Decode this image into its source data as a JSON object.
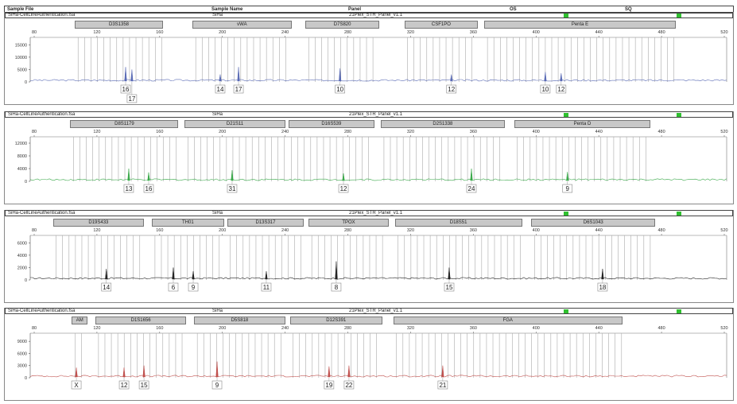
{
  "header": {
    "sample_file": "Sample File",
    "sample_name": "Sample Name",
    "panel": "Panel",
    "os": "OS",
    "sq": "SQ"
  },
  "status_colors": {
    "os": "#2fc02f",
    "sq": "#2fc02f"
  },
  "chart_data": [
    {
      "type": "line",
      "sample_file": "SiHa-CellLineAuthentication.fsa",
      "sample_name": "SiHa",
      "panel": "21Plex_STR_Panel_v1.1",
      "color": "#5a6bb5",
      "xlim": [
        80,
        520
      ],
      "xticks": [
        80,
        120,
        160,
        200,
        240,
        280,
        320,
        360,
        400,
        440,
        480,
        520
      ],
      "ylim": [
        0,
        18000
      ],
      "yticks": [
        0,
        5000,
        10000,
        15000
      ],
      "markers": [
        {
          "name": "D3S1358",
          "range": [
            106,
            162
          ]
        },
        {
          "name": "vWA",
          "range": [
            181,
            244
          ]
        },
        {
          "name": "D7S820",
          "range": [
            253,
            300
          ]
        },
        {
          "name": "CSF1PO",
          "range": [
            316,
            363
          ]
        },
        {
          "name": "Penta E",
          "range": [
            367,
            489
          ]
        }
      ],
      "peaks": [
        {
          "allele": "16",
          "size": 138.3,
          "height": 6000
        },
        {
          "allele": "17",
          "size": 142.3,
          "height": 5000
        },
        {
          "allele": "14",
          "size": 198.6,
          "height": 3000
        },
        {
          "allele": "17",
          "size": 210.3,
          "height": 6000
        },
        {
          "allele": "10",
          "size": 275,
          "height": 5500
        },
        {
          "allele": "12",
          "size": 346,
          "height": 3000
        },
        {
          "allele": "10",
          "size": 405.9,
          "height": 4000
        },
        {
          "allele": "12",
          "size": 416,
          "height": 3500
        }
      ]
    },
    {
      "type": "line",
      "sample_file": "SiHa-CellLineAuthentication.fsa",
      "sample_name": "SiHa",
      "panel": "21Plex_STR_Panel_v1.1",
      "color": "#3aa94a",
      "xlim": [
        80,
        520
      ],
      "xticks": [
        80,
        120,
        160,
        200,
        240,
        280,
        320,
        360,
        400,
        440,
        480,
        520
      ],
      "ylim": [
        0,
        14000
      ],
      "yticks": [
        0,
        4000,
        8000,
        12000
      ],
      "markers": [
        {
          "name": "D8S1179",
          "range": [
            103,
            172
          ]
        },
        {
          "name": "D21S11",
          "range": [
            176,
            240
          ]
        },
        {
          "name": "D16S539",
          "range": [
            242,
            297
          ]
        },
        {
          "name": "D2S1338",
          "range": [
            301,
            380
          ]
        },
        {
          "name": "Penta D",
          "range": [
            386,
            473
          ]
        }
      ],
      "peaks": [
        {
          "allele": "13",
          "size": 140.3,
          "height": 4000
        },
        {
          "allele": "16",
          "size": 153,
          "height": 2800
        },
        {
          "allele": "31",
          "size": 206.2,
          "height": 3500
        },
        {
          "allele": "12",
          "size": 277.2,
          "height": 2500
        },
        {
          "allele": "24",
          "size": 358.8,
          "height": 4000
        },
        {
          "allele": "9",
          "size": 420,
          "height": 3000
        }
      ]
    },
    {
      "type": "line",
      "sample_file": "SiHa-CellLineAuthentication.fsa",
      "sample_name": "SiHa",
      "panel": "21Plex_STR_Panel_v1.1",
      "color": "#222222",
      "xlim": [
        80,
        520
      ],
      "xticks": [
        80,
        120,
        160,
        200,
        240,
        280,
        320,
        360,
        400,
        440,
        480,
        520
      ],
      "ylim": [
        0,
        7200
      ],
      "yticks": [
        0,
        2000,
        4000,
        6000
      ],
      "markers": [
        {
          "name": "D19S433",
          "range": [
            92,
            150
          ]
        },
        {
          "name": "TH01",
          "range": [
            155,
            201
          ]
        },
        {
          "name": "D13S317",
          "range": [
            203,
            252
          ]
        },
        {
          "name": "TPOX",
          "range": [
            255,
            306
          ]
        },
        {
          "name": "D18S51",
          "range": [
            310,
            391
          ]
        },
        {
          "name": "D6S1043",
          "range": [
            397,
            476
          ]
        }
      ],
      "peaks": [
        {
          "allele": "14",
          "size": 126,
          "height": 1800
        },
        {
          "allele": "6",
          "size": 168.7,
          "height": 2000
        },
        {
          "allele": "9",
          "size": 181.4,
          "height": 1400
        },
        {
          "allele": "11",
          "size": 228,
          "height": 1400
        },
        {
          "allele": "8",
          "size": 272.6,
          "height": 3000
        },
        {
          "allele": "15",
          "size": 344.6,
          "height": 2000
        },
        {
          "allele": "18",
          "size": 442.4,
          "height": 1800
        }
      ]
    },
    {
      "type": "line",
      "sample_file": "SiHa-CellLineAuthentication.fsa",
      "sample_name": "SiHa",
      "panel": "21Plex_STR_Panel_v1.1",
      "color": "#c0504d",
      "xlim": [
        80,
        520
      ],
      "xticks": [
        80,
        120,
        160,
        200,
        240,
        280,
        320,
        360,
        400,
        440,
        480,
        520
      ],
      "ylim": [
        0,
        11000
      ],
      "yticks": [
        0,
        3000,
        6000,
        9000
      ],
      "markers": [
        {
          "name": "AM",
          "range": [
            104,
            114
          ]
        },
        {
          "name": "D1S1656",
          "range": [
            119,
            177
          ]
        },
        {
          "name": "D5S818",
          "range": [
            182,
            240
          ]
        },
        {
          "name": "D12S391",
          "range": [
            243,
            302
          ]
        },
        {
          "name": "FGA",
          "range": [
            309,
            455
          ]
        }
      ],
      "peaks": [
        {
          "allele": "X",
          "size": 106.9,
          "height": 2500
        },
        {
          "allele": "12",
          "size": 137.3,
          "height": 2500
        },
        {
          "allele": "15",
          "size": 150,
          "height": 3000
        },
        {
          "allele": "9",
          "size": 196.6,
          "height": 4000
        },
        {
          "allele": "19",
          "size": 268,
          "height": 2800
        },
        {
          "allele": "22",
          "size": 280.7,
          "height": 3000
        },
        {
          "allele": "21",
          "size": 340.5,
          "height": 3000
        }
      ]
    }
  ]
}
